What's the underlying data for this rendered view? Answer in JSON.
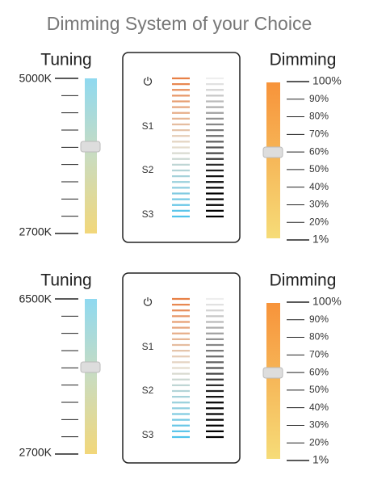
{
  "title": "Dimming System of your Choice",
  "panels": [
    {
      "tuning": {
        "label": "Tuning",
        "top": "5000K",
        "bottom": "2700K"
      },
      "remote": {
        "labels": [
          "S1",
          "S2",
          "S3"
        ]
      },
      "dimming": {
        "label": "Dimming",
        "ticks": [
          "100%",
          "90%",
          "80%",
          "70%",
          "60%",
          "50%",
          "40%",
          "30%",
          "20%",
          "1%"
        ]
      }
    },
    {
      "tuning": {
        "label": "Tuning",
        "top": "6500K",
        "bottom": "2700K"
      },
      "remote": {
        "labels": [
          "S1",
          "S2",
          "S3"
        ]
      },
      "dimming": {
        "label": "Dimming",
        "ticks": [
          "100%",
          "90%",
          "80%",
          "70%",
          "60%",
          "50%",
          "40%",
          "30%",
          "20%",
          "1%"
        ]
      }
    }
  ]
}
